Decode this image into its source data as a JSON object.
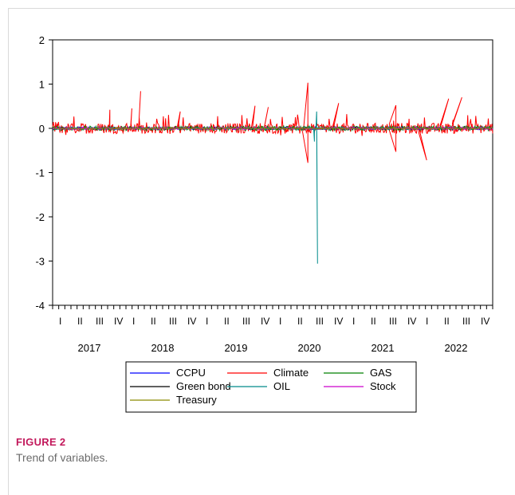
{
  "chart_data": {
    "type": "line",
    "title": "",
    "xlabel": "",
    "ylabel": "",
    "ylim": [
      -4,
      2
    ],
    "yticks": [
      2,
      1,
      0,
      -1,
      -2,
      -3,
      -4
    ],
    "years": [
      "2017",
      "2018",
      "2019",
      "2020",
      "2021",
      "2022"
    ],
    "quarters": [
      "I",
      "II",
      "III",
      "IV"
    ],
    "legend_position": "bottom-center",
    "grid": false,
    "series": [
      {
        "name": "CCPU",
        "color": "#0000ff",
        "amplitude": 0.03
      },
      {
        "name": "Climate",
        "color": "#ff0000",
        "amplitude": 0.12,
        "peaks": [
          {
            "x": 0.13,
            "y": 0.42
          },
          {
            "x": 0.18,
            "y": 0.45
          },
          {
            "x": 0.2,
            "y": 0.84
          },
          {
            "x": 0.29,
            "y": 0.38
          },
          {
            "x": 0.46,
            "y": 0.51
          },
          {
            "x": 0.49,
            "y": 0.48
          },
          {
            "x": 0.58,
            "y": 1.03
          },
          {
            "x": 0.58,
            "y": -0.78
          },
          {
            "x": 0.65,
            "y": 0.57
          },
          {
            "x": 0.78,
            "y": 0.52
          },
          {
            "x": 0.78,
            "y": -0.53
          },
          {
            "x": 0.85,
            "y": -0.72
          },
          {
            "x": 0.9,
            "y": 0.67
          },
          {
            "x": 0.93,
            "y": 0.7
          }
        ]
      },
      {
        "name": "GAS",
        "color": "#008000",
        "amplitude": 0.05
      },
      {
        "name": "Green bond",
        "color": "#000000",
        "amplitude": 0.02
      },
      {
        "name": "OIL",
        "color": "#008b8b",
        "amplitude": 0.03,
        "peaks": [
          {
            "x": 0.6,
            "y": 0.38
          },
          {
            "x": 0.602,
            "y": -3.06
          },
          {
            "x": 0.595,
            "y": -0.3
          }
        ]
      },
      {
        "name": "Stock",
        "color": "#cc00cc",
        "amplitude": 0.03
      },
      {
        "name": "Treasury",
        "color": "#8b8b00",
        "amplitude": 0.02
      }
    ]
  },
  "caption": {
    "label": "FIGURE 2",
    "text": "Trend of variables."
  }
}
